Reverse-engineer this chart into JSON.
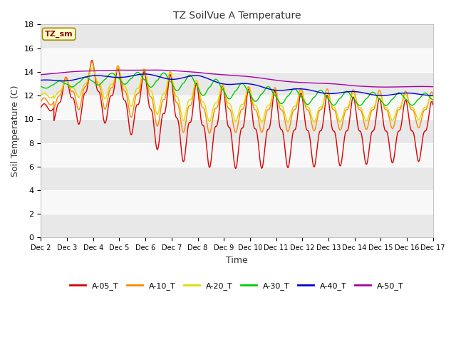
{
  "title": "TZ SoilVue A Temperature",
  "xlabel": "Time",
  "ylabel": "Soil Temperature (C)",
  "ylim": [
    0,
    18
  ],
  "yticks": [
    0,
    2,
    4,
    6,
    8,
    10,
    12,
    14,
    16,
    18
  ],
  "fig_bg_color": "#ffffff",
  "plot_bg_color": "#ffffff",
  "band_colors": [
    "#e8e8e8",
    "#f8f8f8"
  ],
  "annotation_text": "TZ_sm",
  "annotation_bg": "#ffffcc",
  "annotation_border": "#aa8800",
  "annotation_text_color": "#880000",
  "series_colors": {
    "A-05_T": "#dd0000",
    "A-10_T": "#ff8800",
    "A-20_T": "#dddd00",
    "A-30_T": "#00cc00",
    "A-40_T": "#0000dd",
    "A-50_T": "#aa00aa"
  },
  "legend_labels": [
    "A-05_T",
    "A-10_T",
    "A-20_T",
    "A-30_T",
    "A-40_T",
    "A-50_T"
  ],
  "x_tick_labels": [
    "Dec 2",
    "Dec 3",
    "Dec 4",
    "Dec 5",
    "Dec 6",
    "Dec 7",
    "Dec 8",
    "Dec 9",
    "Dec 10",
    "Dec 11",
    "Dec 12",
    "Dec 13",
    "Dec 14",
    "Dec 15",
    "Dec 16",
    "Dec 17"
  ],
  "x_tick_positions": [
    2,
    3,
    4,
    5,
    6,
    7,
    8,
    9,
    10,
    11,
    12,
    13,
    14,
    15,
    16,
    17
  ]
}
